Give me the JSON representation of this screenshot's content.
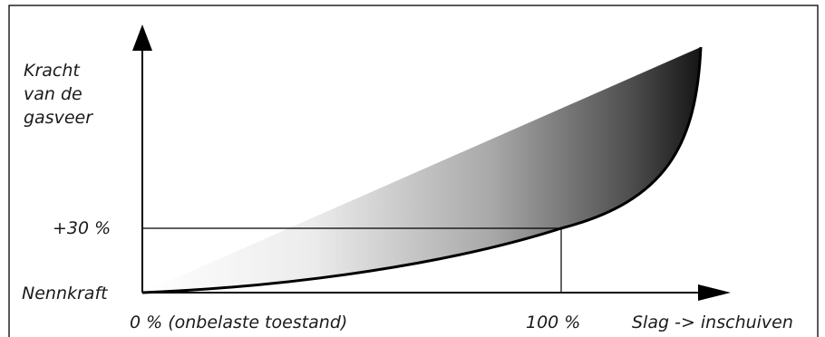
{
  "diagram": {
    "y_axis_label": [
      "Kracht",
      "van de",
      "gasveer"
    ],
    "y_tick_plus30": "+30 %",
    "y_tick_nominal": "Nennkraft",
    "x_tick_start": "0 % (onbelaste toestand)",
    "x_tick_end": "100 %",
    "x_axis_label": "Slag -> inschuiven"
  }
}
